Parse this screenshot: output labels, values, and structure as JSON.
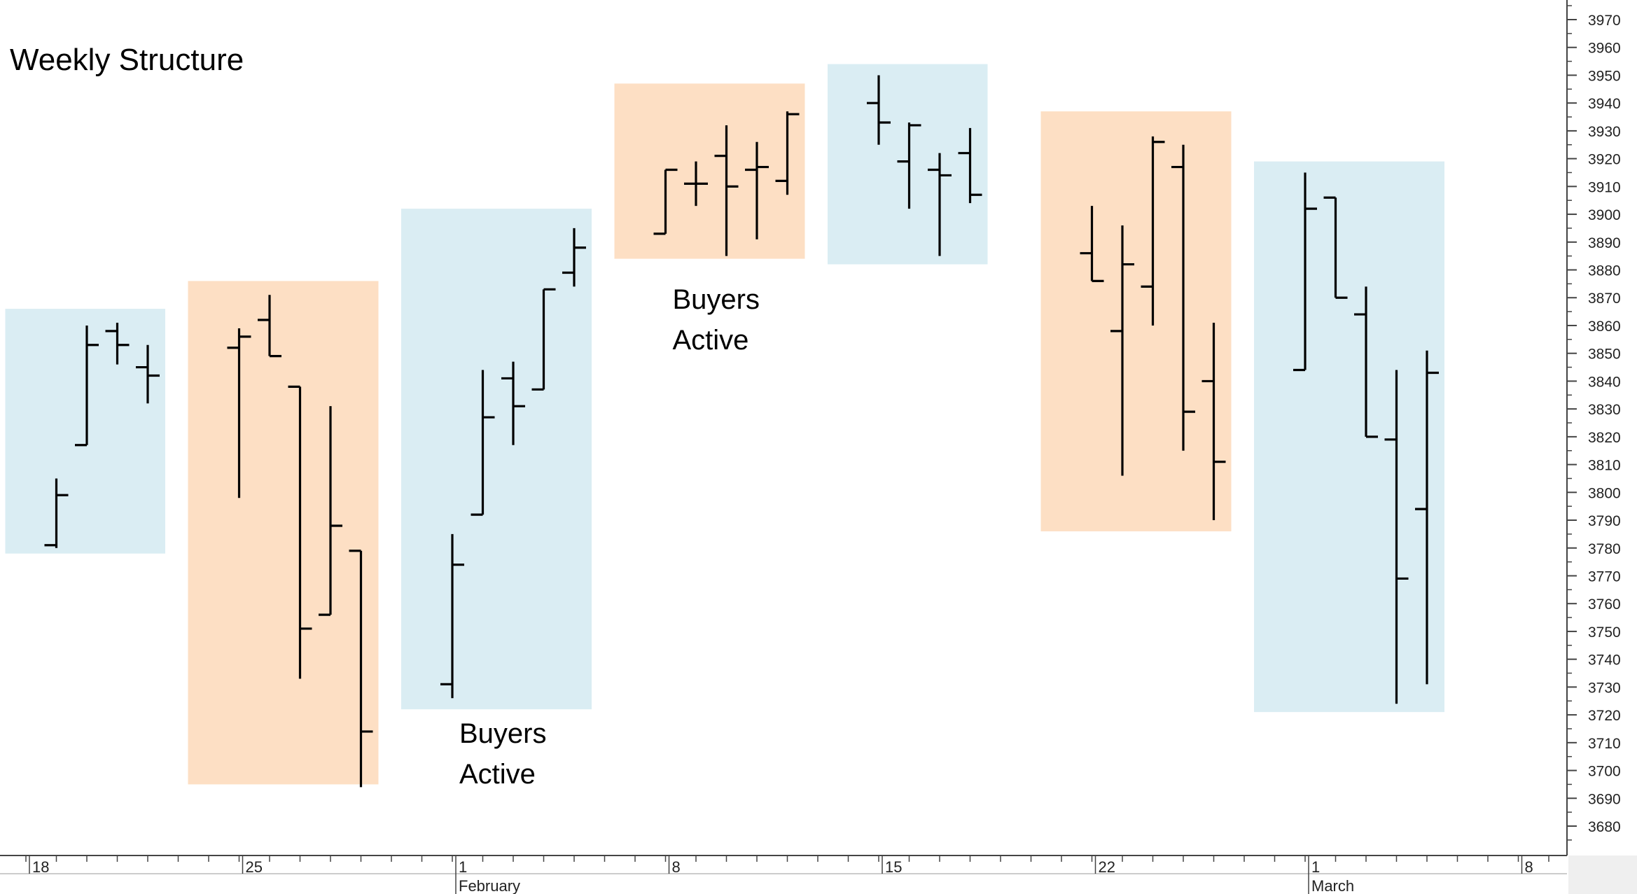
{
  "chart_data": {
    "type": "ohlc",
    "title": "Weekly Structure",
    "xlabel": "",
    "ylabel": "",
    "ylim": [
      3672,
      3975
    ],
    "y_ticks": [
      3680,
      3690,
      3700,
      3710,
      3720,
      3730,
      3740,
      3750,
      3760,
      3770,
      3780,
      3790,
      3800,
      3810,
      3820,
      3830,
      3840,
      3850,
      3860,
      3870,
      3880,
      3890,
      3900,
      3910,
      3920,
      3930,
      3940,
      3950,
      3960,
      3970
    ],
    "y_axis_position": "right",
    "grid": false,
    "x_axis": {
      "day_labels": [
        {
          "label": "18",
          "day": 0
        },
        {
          "label": "25",
          "day": 7
        },
        {
          "label": "1",
          "day": 14
        },
        {
          "label": "8",
          "day": 21
        },
        {
          "label": "15",
          "day": 28
        },
        {
          "label": "22",
          "day": 35
        },
        {
          "label": "1",
          "day": 42
        },
        {
          "label": "8",
          "day": 49
        }
      ],
      "month_labels": [
        {
          "label": "February",
          "day": 14
        },
        {
          "label": "March",
          "day": 42
        }
      ],
      "minor_tick_days": [
        0,
        1,
        2,
        3,
        4,
        5,
        6,
        7,
        8,
        9,
        10,
        11,
        12,
        13,
        14,
        15,
        16,
        17,
        18,
        19,
        20,
        21,
        22,
        23,
        24,
        25,
        26,
        27,
        28,
        29,
        30,
        31,
        32,
        33,
        34,
        35,
        36,
        37,
        38,
        39,
        40,
        41,
        42,
        43,
        44,
        45,
        46,
        47,
        48,
        49,
        50
      ]
    },
    "bars": [
      {
        "day": 1,
        "open": 3781,
        "high": 3805,
        "low": 3780,
        "close": 3799
      },
      {
        "day": 2,
        "open": 3817,
        "high": 3860,
        "low": 3817,
        "close": 3853
      },
      {
        "day": 3,
        "open": 3858,
        "high": 3861,
        "low": 3846,
        "close": 3853
      },
      {
        "day": 4,
        "open": 3845,
        "high": 3853,
        "low": 3832,
        "close": 3842
      },
      {
        "day": 7,
        "open": 3852,
        "high": 3859,
        "low": 3798,
        "close": 3856
      },
      {
        "day": 8,
        "open": 3862,
        "high": 3871,
        "low": 3849,
        "close": 3849
      },
      {
        "day": 9,
        "open": 3838,
        "high": 3838,
        "low": 3733,
        "close": 3751
      },
      {
        "day": 10,
        "open": 3756,
        "high": 3831,
        "low": 3756,
        "close": 3788
      },
      {
        "day": 11,
        "open": 3779,
        "high": 3779,
        "low": 3694,
        "close": 3714
      },
      {
        "day": 14,
        "open": 3731,
        "high": 3785,
        "low": 3726,
        "close": 3774
      },
      {
        "day": 15,
        "open": 3792,
        "high": 3844,
        "low": 3792,
        "close": 3827
      },
      {
        "day": 16,
        "open": 3841,
        "high": 3847,
        "low": 3817,
        "close": 3831
      },
      {
        "day": 17,
        "open": 3837,
        "high": 3873,
        "low": 3837,
        "close": 3873
      },
      {
        "day": 18,
        "open": 3879,
        "high": 3895,
        "low": 3874,
        "close": 3888
      },
      {
        "day": 21,
        "open": 3893,
        "high": 3916,
        "low": 3893,
        "close": 3916
      },
      {
        "day": 22,
        "open": 3911,
        "high": 3919,
        "low": 3903,
        "close": 3911
      },
      {
        "day": 23,
        "open": 3921,
        "high": 3932,
        "low": 3885,
        "close": 3910
      },
      {
        "day": 24,
        "open": 3916,
        "high": 3926,
        "low": 3891,
        "close": 3917
      },
      {
        "day": 25,
        "open": 3912,
        "high": 3937,
        "low": 3907,
        "close": 3936
      },
      {
        "day": 28,
        "open": 3940,
        "high": 3950,
        "low": 3925,
        "close": 3933
      },
      {
        "day": 29,
        "open": 3919,
        "high": 3933,
        "low": 3902,
        "close": 3932
      },
      {
        "day": 30,
        "open": 3916,
        "high": 3922,
        "low": 3885,
        "close": 3914
      },
      {
        "day": 31,
        "open": 3922,
        "high": 3931,
        "low": 3904,
        "close": 3907
      },
      {
        "day": 35,
        "open": 3886,
        "high": 3903,
        "low": 3876,
        "close": 3876
      },
      {
        "day": 36,
        "open": 3858,
        "high": 3896,
        "low": 3806,
        "close": 3882
      },
      {
        "day": 37,
        "open": 3874,
        "high": 3928,
        "low": 3860,
        "close": 3926
      },
      {
        "day": 38,
        "open": 3917,
        "high": 3925,
        "low": 3815,
        "close": 3829
      },
      {
        "day": 39,
        "open": 3840,
        "high": 3861,
        "low": 3790,
        "close": 3811
      },
      {
        "day": 42,
        "open": 3844,
        "high": 3915,
        "low": 3844,
        "close": 3902
      },
      {
        "day": 43,
        "open": 3906,
        "high": 3906,
        "low": 3870,
        "close": 3870
      },
      {
        "day": 44,
        "open": 3864,
        "high": 3874,
        "low": 3820,
        "close": 3820
      },
      {
        "day": 45,
        "open": 3819,
        "high": 3844,
        "low": 3724,
        "close": 3769
      },
      {
        "day": 46,
        "open": 3794,
        "high": 3851,
        "low": 3731,
        "close": 3843
      }
    ],
    "zones": [
      {
        "from_day": 1,
        "to_day": 4,
        "low": 3778,
        "high": 3866,
        "color": "#daedf3"
      },
      {
        "from_day": 7,
        "to_day": 11,
        "low": 3695,
        "high": 3876,
        "color": "#fddfc4"
      },
      {
        "from_day": 14,
        "to_day": 18,
        "low": 3722,
        "high": 3902,
        "color": "#daedf3"
      },
      {
        "from_day": 21,
        "to_day": 25,
        "low": 3884,
        "high": 3947,
        "color": "#fddfc4"
      },
      {
        "from_day": 28,
        "to_day": 31,
        "low": 3882,
        "high": 3954,
        "color": "#daedf3"
      },
      {
        "from_day": 35,
        "to_day": 39,
        "low": 3786,
        "high": 3937,
        "color": "#fddfc4"
      },
      {
        "from_day": 42,
        "to_day": 46,
        "low": 3721,
        "high": 3919,
        "color": "#daedf3"
      }
    ],
    "annotations": [
      {
        "lines": [
          "Buyers",
          "Active"
        ],
        "day": 14,
        "value": 3710
      },
      {
        "lines": [
          "Buyers",
          "Active"
        ],
        "day": 21,
        "value": 3866
      }
    ],
    "colors": {
      "bar": "#000000",
      "blue_zone": "#daedf3",
      "orange_zone": "#fddfc4",
      "axis": "#444444"
    }
  }
}
